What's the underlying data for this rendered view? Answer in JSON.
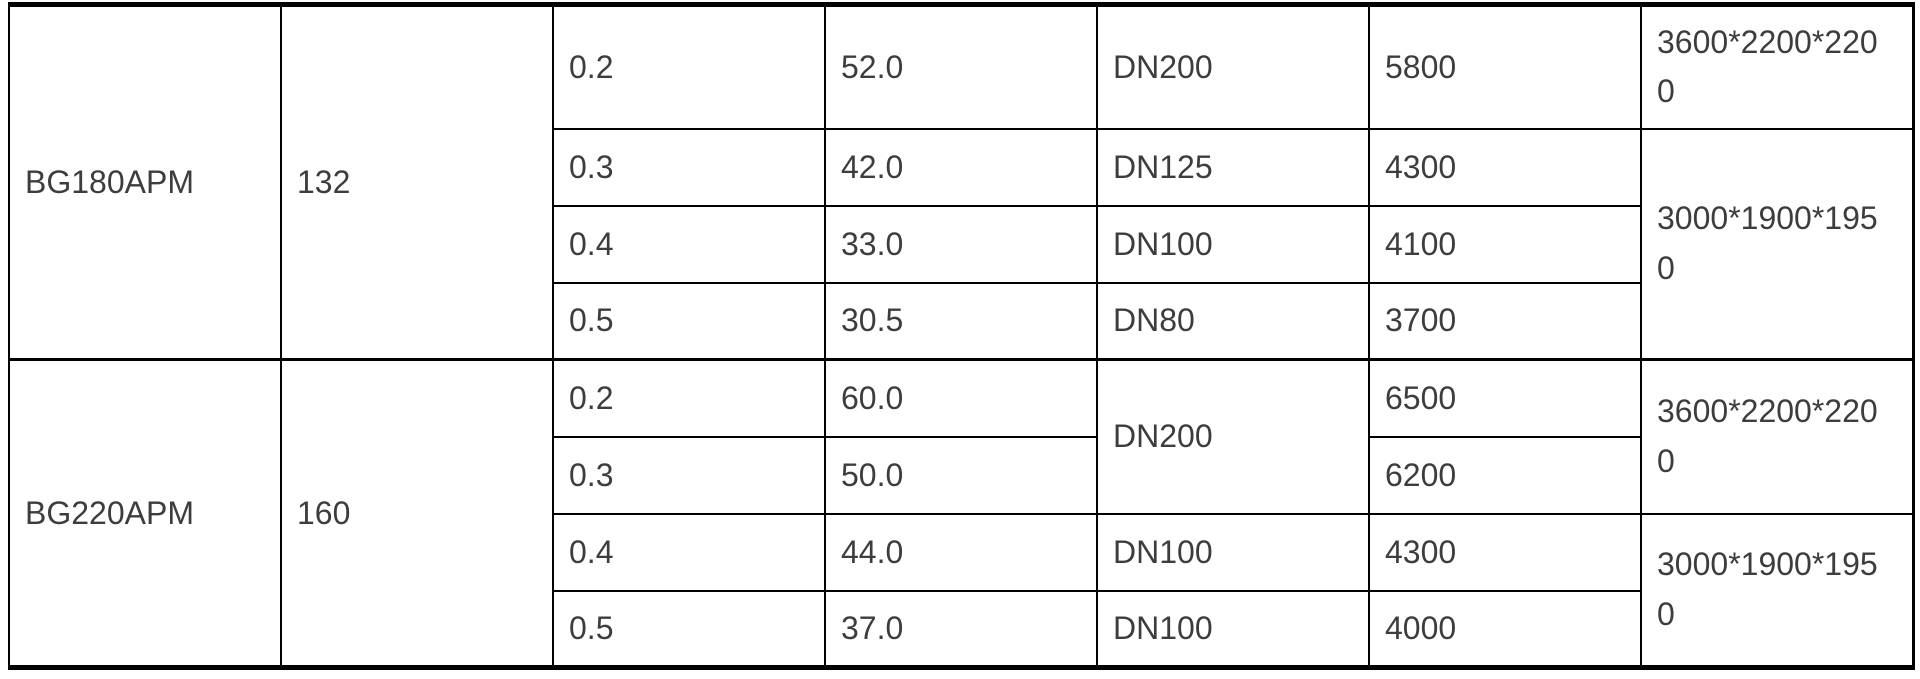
{
  "page": {
    "background": "#ffffff"
  },
  "table": {
    "border_color": "#000000",
    "text_color": "#3d3d3d",
    "groups": [
      {
        "model": "BG180APM",
        "motor_power": "132",
        "rows": [
          {
            "pressure": "0.2",
            "capacity": "52.0",
            "outlet": "DN200",
            "weight": "5800",
            "dimensions": "3600*2200*2200"
          },
          {
            "pressure": "0.3",
            "capacity": "42.0",
            "outlet": "DN125",
            "weight": "4300",
            "dimensions": "3000*1900*1950"
          },
          {
            "pressure": "0.4",
            "capacity": "33.0",
            "outlet": "DN100",
            "weight": "4100"
          },
          {
            "pressure": "0.5",
            "capacity": "30.5",
            "outlet": "DN80",
            "weight": "3700"
          }
        ]
      },
      {
        "model": "BG220APM",
        "motor_power": "160",
        "rows": [
          {
            "pressure": "0.2",
            "capacity": "60.0",
            "outlet": "DN200",
            "weight": "6500",
            "dimensions": "3600*2200*2200"
          },
          {
            "pressure": "0.3",
            "capacity": "50.0",
            "weight": "6200"
          },
          {
            "pressure": "0.4",
            "capacity": "44.0",
            "outlet": "DN100",
            "weight": "4300",
            "dimensions": "3000*1900*1950"
          },
          {
            "pressure": "0.5",
            "capacity": "37.0",
            "outlet": "DN100",
            "weight": "4000"
          }
        ]
      }
    ]
  }
}
